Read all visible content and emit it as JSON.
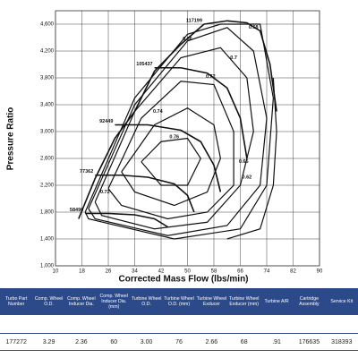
{
  "chart_data": {
    "type": "compressor-map",
    "x_label": "Corrected Mass Flow (lbs/min)",
    "y_label": "Pressure Ratio",
    "xlim": [
      10,
      90
    ],
    "ylim": [
      1.0,
      4.8
    ],
    "xticks": [
      10,
      18,
      26,
      34,
      42,
      50,
      58,
      66,
      74,
      82,
      90
    ],
    "yticks": [
      {
        "value": 1.0,
        "label": "1,000"
      },
      {
        "value": 1.4,
        "label": "1,400"
      },
      {
        "value": 1.8,
        "label": "1,800"
      },
      {
        "value": 2.2,
        "label": "2,200"
      },
      {
        "value": 2.6,
        "label": "2,600"
      },
      {
        "value": 3.0,
        "label": "3,000"
      },
      {
        "value": 3.4,
        "label": "3,400"
      },
      {
        "value": 3.8,
        "label": "3,800"
      },
      {
        "value": 4.2,
        "label": "4,200"
      },
      {
        "value": 4.6,
        "label": "4,600"
      }
    ],
    "grid": true,
    "color": "#111111",
    "surge": {
      "x": [
        17,
        22,
        28,
        34,
        40,
        48,
        55
      ],
      "y": [
        1.7,
        2.3,
        2.9,
        3.3,
        3.9,
        4.3,
        4.6
      ]
    },
    "series": [
      {
        "name": "58496",
        "x": [
          19,
          26,
          34,
          40,
          44
        ],
        "y": [
          1.78,
          1.78,
          1.76,
          1.7,
          1.58
        ]
      },
      {
        "name": "77362",
        "x": [
          22,
          30,
          38,
          46,
          50,
          52
        ],
        "y": [
          2.35,
          2.35,
          2.32,
          2.22,
          2.05,
          1.8
        ]
      },
      {
        "name": "92449",
        "x": [
          28,
          38,
          48,
          54,
          58,
          60
        ],
        "y": [
          3.1,
          3.1,
          3.02,
          2.85,
          2.5,
          2.1
        ]
      },
      {
        "name": "105437",
        "x": [
          40,
          48,
          56,
          62,
          66,
          68
        ],
        "y": [
          3.95,
          3.95,
          3.87,
          3.65,
          3.2,
          2.6
        ]
      },
      {
        "name": "117199",
        "x": [
          55,
          62,
          68,
          72,
          75,
          77
        ],
        "y": [
          4.6,
          4.65,
          4.62,
          4.5,
          4.0,
          3.3
        ]
      }
    ],
    "islands": [
      {
        "x": [
          36,
          42,
          50,
          54,
          50,
          42,
          36
        ],
        "y": [
          2.55,
          2.85,
          2.9,
          2.6,
          2.2,
          2.2,
          2.55
        ]
      },
      {
        "x": [
          30,
          40,
          50,
          58,
          60,
          56,
          46,
          34,
          30
        ],
        "y": [
          2.4,
          3.1,
          3.35,
          3.1,
          2.6,
          2.1,
          1.9,
          2.1,
          2.4
        ]
      },
      {
        "x": [
          26,
          36,
          48,
          58,
          64,
          64,
          56,
          44,
          30,
          26
        ],
        "y": [
          2.15,
          3.2,
          3.75,
          3.7,
          3.0,
          2.2,
          1.8,
          1.7,
          1.9,
          2.15
        ]
      },
      {
        "x": [
          22,
          34,
          48,
          60,
          68,
          70,
          66,
          56,
          40,
          24,
          22
        ],
        "y": [
          1.95,
          3.3,
          4.1,
          4.25,
          3.8,
          3.0,
          2.2,
          1.65,
          1.55,
          1.75,
          1.95
        ]
      },
      {
        "x": [
          20,
          34,
          50,
          62,
          70,
          74,
          72,
          62,
          44,
          22,
          20
        ],
        "y": [
          1.85,
          3.4,
          4.35,
          4.55,
          4.2,
          3.2,
          2.2,
          1.6,
          1.45,
          1.7,
          1.85
        ]
      },
      {
        "x": [
          19,
          34,
          50,
          60,
          72,
          76,
          74,
          66,
          46,
          20,
          19
        ],
        "y": [
          1.8,
          3.5,
          4.45,
          4.6,
          4.6,
          3.5,
          2.2,
          1.55,
          1.4,
          1.7,
          1.8
        ]
      },
      {
        "x": [
          76,
          77,
          76,
          72,
          62
        ],
        "y": [
          3.8,
          3.0,
          2.2,
          1.55,
          1.4
        ]
      }
    ],
    "annotations": [
      {
        "text": 0.76,
        "x": 46,
        "y": 2.92
      },
      {
        "text": 0.74,
        "x": 41,
        "y": 3.3
      },
      {
        "text": 0.72,
        "x": 25,
        "y": 2.1
      },
      {
        "text": 0.72,
        "x": 57,
        "y": 3.82
      },
      {
        "text": 0.7,
        "x": 64,
        "y": 4.1
      },
      {
        "text": 0.68,
        "x": 70,
        "y": 4.55
      },
      {
        "text": 0.66,
        "x": 50,
        "y": 4.38
      },
      {
        "text": 0.66,
        "x": 67,
        "y": 2.55
      },
      {
        "text": 0.62,
        "x": 68,
        "y": 2.32
      }
    ]
  },
  "table": {
    "header": [
      "Turbo Part Number",
      "Comp. Wheel O.D.",
      "Comp. Wheel Inducer Dia.",
      "Comp. Wheel Inducer Dia. (mm)",
      "Turbine Wheel O.D.",
      "Turbine Wheel O.D. (mm)",
      "Turbine Wheel Exducer",
      "Turbine Wheel Exducer (mm)",
      "Turbine A/R",
      "Cartridge Assembly",
      "Service Kit"
    ],
    "rows": [
      [
        "177272",
        "3.29",
        "2.36",
        "60",
        "3.00",
        "76",
        "2.66",
        "68",
        ".91",
        "176635",
        "318393"
      ]
    ]
  }
}
